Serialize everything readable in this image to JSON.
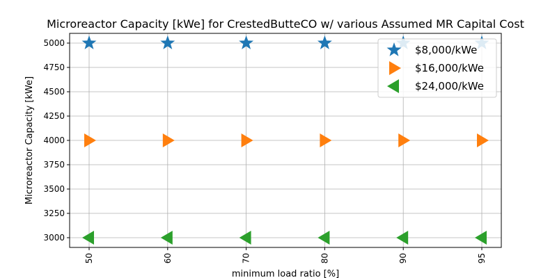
{
  "chart_data": {
    "type": "scatter",
    "title": "Microreactor Capacity [kWe] for CrestedButteCO w/ various Assumed MR Capital Cost",
    "xlabel": "minimum load ratio [%]",
    "ylabel": "Microreactor Capacity [kWe]",
    "categories": [
      "50",
      "60",
      "70",
      "80",
      "90",
      "95"
    ],
    "ylim": [
      2900,
      5100
    ],
    "yticks": [
      3000,
      3250,
      3500,
      3750,
      4000,
      4250,
      4500,
      4750,
      5000
    ],
    "grid": true,
    "legend_position": "top-right",
    "series": [
      {
        "name": "$8,000/kWe",
        "marker": "star",
        "color": "#1f77b4",
        "values": [
          5000,
          5000,
          5000,
          5000,
          5000,
          5000
        ]
      },
      {
        "name": "$16,000/kWe",
        "marker": "triangle-right",
        "color": "#ff7f0e",
        "values": [
          4000,
          4000,
          4000,
          4000,
          4000,
          4000
        ]
      },
      {
        "name": "$24,000/kWe",
        "marker": "triangle-left",
        "color": "#2ca02c",
        "values": [
          3000,
          3000,
          3000,
          3000,
          3000,
          3000
        ]
      }
    ]
  }
}
